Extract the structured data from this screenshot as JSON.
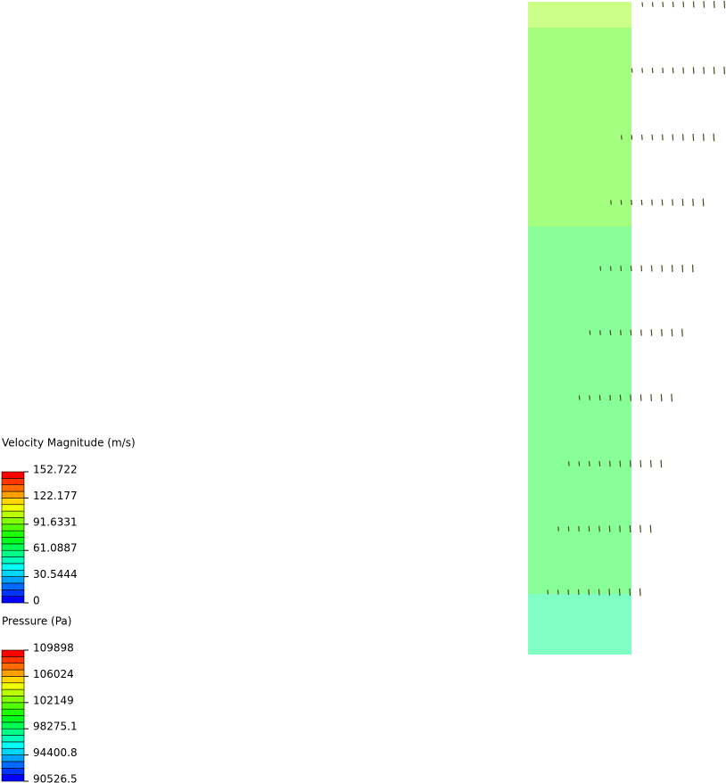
{
  "legends": [
    {
      "title": "Velocity Magnitude (m/s)",
      "labels": [
        "152.722",
        "122.177",
        "91.6331",
        "61.0887",
        "30.5444",
        "0"
      ]
    },
    {
      "title": "Pressure (Pa)",
      "labels": [
        "109898",
        "106024",
        "102149",
        "98275.1",
        "94400.8",
        "90526.5"
      ]
    }
  ]
}
